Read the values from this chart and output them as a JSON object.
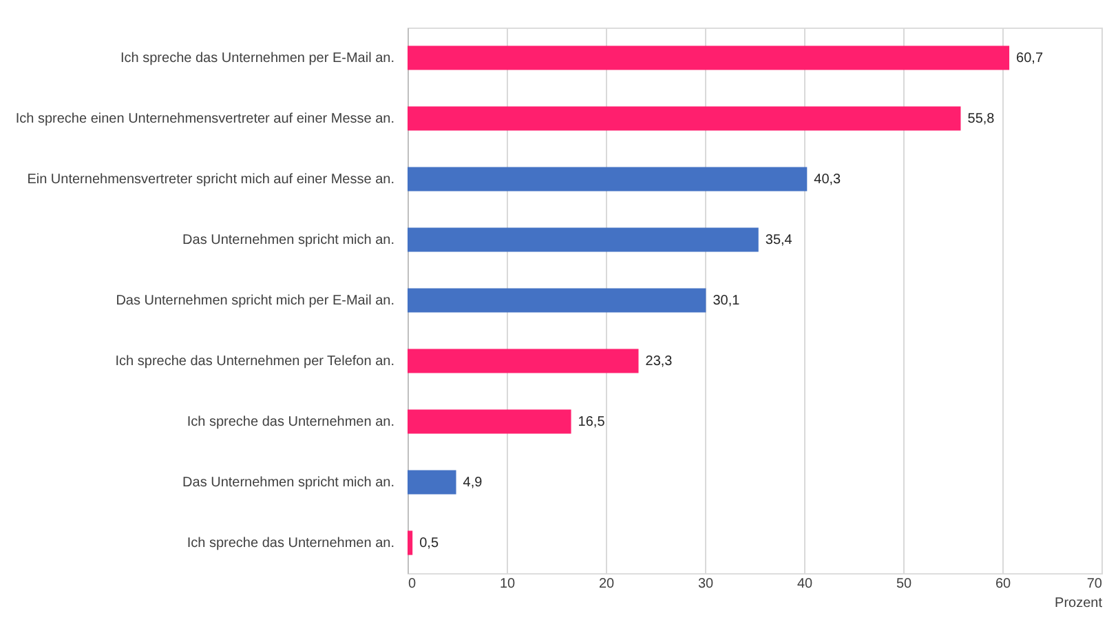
{
  "chart_data": {
    "type": "bar",
    "orientation": "horizontal",
    "xlabel": "Prozent",
    "categories": [
      "Ich spreche das Unternehmen per E-Mail an.",
      "Ich spreche einen Unternehmensvertreter auf einer Messe an.",
      "Ein Unternehmensvertreter spricht mich auf einer Messe an.",
      "Das Unternehmen spricht mich an.",
      "Das Unternehmen spricht mich per E-Mail an.",
      "Ich spreche das Unternehmen per Telefon an.",
      "Ich spreche das Unternehmen an.",
      "Das Unternehmen spricht mich an.",
      "Ich spreche das Unternehmen an."
    ],
    "values": [
      60.7,
      55.8,
      40.3,
      35.4,
      30.1,
      23.3,
      16.5,
      4.9,
      0.5
    ],
    "value_labels": [
      "60,7",
      "55,8",
      "40,3",
      "35,4",
      "30,1",
      "23,3",
      "16,5",
      "4,9",
      "0,5"
    ],
    "colors": [
      "#ff1f6e",
      "#ff1f6e",
      "#4472c4",
      "#4472c4",
      "#4472c4",
      "#ff1f6e",
      "#ff1f6e",
      "#4472c4",
      "#ff1f6e"
    ],
    "xlim": [
      0,
      70
    ],
    "xticks": [
      0,
      10,
      20,
      30,
      40,
      50,
      60,
      70
    ],
    "grid": "x"
  }
}
